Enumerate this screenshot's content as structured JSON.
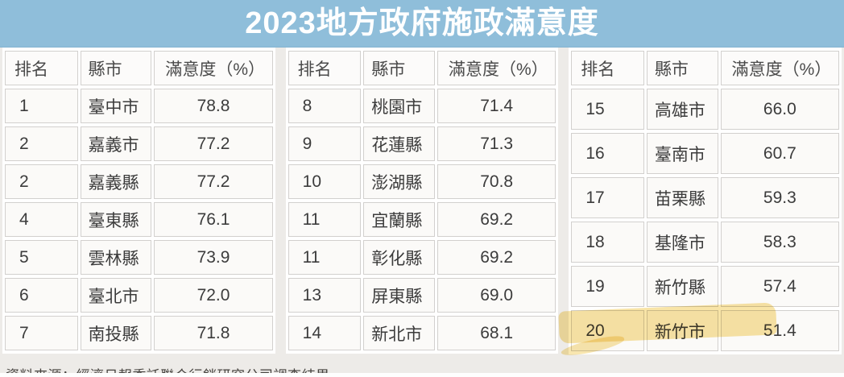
{
  "title": "2023地方政府施政滿意度",
  "tables": [
    {
      "headers": {
        "rank": "排名",
        "city": "縣市",
        "satisfaction": "滿意度（%）"
      },
      "rows": [
        {
          "rank": "1",
          "city": "臺中市",
          "value": "78.8"
        },
        {
          "rank": "2",
          "city": "嘉義市",
          "value": "77.2"
        },
        {
          "rank": "2",
          "city": "嘉義縣",
          "value": "77.2"
        },
        {
          "rank": "4",
          "city": "臺東縣",
          "value": "76.1"
        },
        {
          "rank": "5",
          "city": "雲林縣",
          "value": "73.9"
        },
        {
          "rank": "6",
          "city": "臺北市",
          "value": "72.0"
        },
        {
          "rank": "7",
          "city": "南投縣",
          "value": "71.8"
        }
      ]
    },
    {
      "headers": {
        "rank": "排名",
        "city": "縣市",
        "satisfaction": "滿意度（%）"
      },
      "rows": [
        {
          "rank": "8",
          "city": "桃園市",
          "value": "71.4"
        },
        {
          "rank": "9",
          "city": "花蓮縣",
          "value": "71.3"
        },
        {
          "rank": "10",
          "city": "澎湖縣",
          "value": "70.8"
        },
        {
          "rank": "11",
          "city": "宜蘭縣",
          "value": "69.2"
        },
        {
          "rank": "11",
          "city": "彰化縣",
          "value": "69.2"
        },
        {
          "rank": "13",
          "city": "屏東縣",
          "value": "69.0"
        },
        {
          "rank": "14",
          "city": "新北市",
          "value": "68.1"
        }
      ]
    },
    {
      "headers": {
        "rank": "排名",
        "city": "縣市",
        "satisfaction": "滿意度（%）"
      },
      "rows": [
        {
          "rank": "15",
          "city": "高雄市",
          "value": "66.0"
        },
        {
          "rank": "16",
          "city": "臺南市",
          "value": "60.7"
        },
        {
          "rank": "17",
          "city": "苗栗縣",
          "value": "59.3"
        },
        {
          "rank": "18",
          "city": "基隆市",
          "value": "58.3"
        },
        {
          "rank": "19",
          "city": "新竹縣",
          "value": "57.4"
        },
        {
          "rank": "20",
          "city": "新竹市",
          "value": "51.4",
          "highlighted": true
        }
      ]
    }
  ],
  "footer": {
    "source": "資料來源：經濟日報委託聯合行銷研究公司調查結果"
  },
  "colors": {
    "title_bg": "#8fbeda",
    "title_text": "#ffffff",
    "page_bg": "#edebe8",
    "cell_bg": "#fbfaf8",
    "cell_border": "#d2d0ce",
    "highlight_marker": "#f2cd5f"
  },
  "chart_data": {
    "type": "table",
    "title": "2023地方政府施政滿意度",
    "columns": [
      "排名",
      "縣市",
      "滿意度（%）"
    ],
    "rows": [
      [
        1,
        "臺中市",
        78.8
      ],
      [
        2,
        "嘉義市",
        77.2
      ],
      [
        2,
        "嘉義縣",
        77.2
      ],
      [
        4,
        "臺東縣",
        76.1
      ],
      [
        5,
        "雲林縣",
        73.9
      ],
      [
        6,
        "臺北市",
        72.0
      ],
      [
        7,
        "南投縣",
        71.8
      ],
      [
        8,
        "桃園市",
        71.4
      ],
      [
        9,
        "花蓮縣",
        71.3
      ],
      [
        10,
        "澎湖縣",
        70.8
      ],
      [
        11,
        "宜蘭縣",
        69.2
      ],
      [
        11,
        "彰化縣",
        69.2
      ],
      [
        13,
        "屏東縣",
        69.0
      ],
      [
        14,
        "新北市",
        68.1
      ],
      [
        15,
        "高雄市",
        66.0
      ],
      [
        16,
        "臺南市",
        60.7
      ],
      [
        17,
        "苗栗縣",
        59.3
      ],
      [
        18,
        "基隆市",
        58.3
      ],
      [
        19,
        "新竹縣",
        57.4
      ],
      [
        20,
        "新竹市",
        51.4
      ]
    ],
    "highlighted_row": [
      20,
      "新竹市",
      51.4
    ],
    "source": "資料來源：經濟日報委託聯合行銷研究公司調查結果"
  }
}
